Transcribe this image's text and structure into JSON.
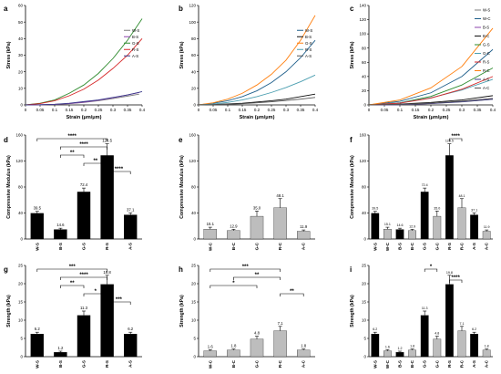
{
  "chart_data": [
    {
      "panel": "a",
      "type": "line",
      "xlabel": "Strain (μm/μm)",
      "ylabel": "Stress (kPa)",
      "xlim": [
        0,
        0.4
      ],
      "ylim": [
        0,
        60
      ],
      "xticks": [
        "0",
        "0.05",
        "0.1",
        "0.15",
        "0.2",
        "0.25",
        "0.3",
        "0.35",
        "0.4"
      ],
      "yticks": [
        "0",
        "10",
        "20",
        "30",
        "40",
        "50",
        "60"
      ],
      "legend_position": "right",
      "series": [
        {
          "name": "W-S",
          "color": "#7f7f7f",
          "x": [
            0,
            0.05,
            0.1,
            0.15,
            0.2,
            0.25,
            0.3,
            0.35,
            0.39
          ],
          "y": [
            0,
            0.1,
            0.3,
            0.7,
            1.5,
            2.5,
            3.8,
            5.3,
            6.5
          ]
        },
        {
          "name": "B-S",
          "color": "#8e44ad",
          "x": [
            0,
            0.05,
            0.1,
            0.15,
            0.2,
            0.25,
            0.3,
            0.35,
            0.39
          ],
          "y": [
            0,
            0.1,
            0.3,
            0.8,
            1.6,
            2.8,
            4.3,
            6.0,
            7.5
          ]
        },
        {
          "name": "G-S",
          "color": "#2e8b2e",
          "x": [
            0,
            0.05,
            0.1,
            0.15,
            0.2,
            0.25,
            0.3,
            0.35,
            0.4
          ],
          "y": [
            0,
            1,
            3,
            7,
            12,
            19,
            28,
            39,
            52
          ]
        },
        {
          "name": "R-S",
          "color": "#d62728",
          "x": [
            0,
            0.05,
            0.1,
            0.15,
            0.2,
            0.25,
            0.3,
            0.35,
            0.4
          ],
          "y": [
            0,
            0.8,
            2.5,
            5.5,
            9.5,
            15,
            22,
            30,
            40
          ]
        },
        {
          "name": "A-S",
          "color": "#3a3a8a",
          "x": [
            0,
            0.05,
            0.1,
            0.15,
            0.2,
            0.25,
            0.3,
            0.35,
            0.4
          ],
          "y": [
            0,
            0.1,
            0.4,
            1,
            2,
            3,
            4.5,
            6,
            8
          ]
        }
      ]
    },
    {
      "panel": "b",
      "type": "line",
      "xlabel": "Strain (μm/μm)",
      "ylabel": "Stress (kPa)",
      "xlim": [
        0,
        0.4
      ],
      "ylim": [
        0,
        120
      ],
      "xticks": [
        "0",
        "0.05",
        "0.1",
        "0.15",
        "0.2",
        "0.25",
        "0.3",
        "0.35",
        "0.4"
      ],
      "yticks": [
        "0",
        "20",
        "40",
        "60",
        "80",
        "100",
        "120"
      ],
      "legend_position": "right",
      "series": [
        {
          "name": "W-S",
          "color": "#1f5f8b",
          "x": [
            0,
            0.05,
            0.1,
            0.15,
            0.2,
            0.25,
            0.3,
            0.35,
            0.4
          ],
          "y": [
            0,
            2,
            5,
            10,
            17,
            27,
            40,
            57,
            78
          ]
        },
        {
          "name": "B-S",
          "color": "#111111",
          "x": [
            0,
            0.05,
            0.1,
            0.15,
            0.2,
            0.25,
            0.3,
            0.35,
            0.4
          ],
          "y": [
            0,
            0.5,
            1.2,
            2,
            3.5,
            5,
            7,
            10,
            13
          ]
        },
        {
          "name": "G-S",
          "color": "#ff7f0e",
          "x": [
            0,
            0.05,
            0.1,
            0.15,
            0.2,
            0.25,
            0.3,
            0.35,
            0.4
          ],
          "y": [
            0,
            2.5,
            7,
            14,
            24,
            37,
            54,
            78,
            108
          ]
        },
        {
          "name": "R-S",
          "color": "#4a9eb0",
          "x": [
            0,
            0.05,
            0.1,
            0.15,
            0.2,
            0.25,
            0.3,
            0.35,
            0.4
          ],
          "y": [
            0,
            1,
            3,
            6,
            10,
            15,
            21,
            28,
            36
          ]
        },
        {
          "name": "A-S",
          "color": "#555555",
          "x": [
            0,
            0.05,
            0.1,
            0.15,
            0.2,
            0.25,
            0.3,
            0.35,
            0.4
          ],
          "y": [
            0,
            0.3,
            0.8,
            1.5,
            2.5,
            3.8,
            5.3,
            7,
            9
          ]
        }
      ]
    },
    {
      "panel": "c",
      "type": "line",
      "xlabel": "Strain (μm/μm)",
      "ylabel": "Stress (kPa)",
      "xlim": [
        0,
        0.4
      ],
      "ylim": [
        0,
        140
      ],
      "xticks": [
        "0",
        "0.05",
        "0.1",
        "0.15",
        "0.2",
        "0.25",
        "0.3",
        "0.35",
        "0.4"
      ],
      "yticks": [
        "0",
        "20",
        "40",
        "60",
        "80",
        "100",
        "120",
        "140"
      ],
      "legend_position": "top-right",
      "series": [
        {
          "name": "W-S",
          "color": "#7f7f7f",
          "x": [
            0,
            0.1,
            0.2,
            0.3,
            0.4
          ],
          "y": [
            0,
            0.4,
            1.8,
            4.2,
            8
          ]
        },
        {
          "name": "W-C",
          "color": "#1f5f8b",
          "x": [
            0,
            0.1,
            0.2,
            0.3,
            0.4
          ],
          "y": [
            0,
            5,
            17,
            40,
            78
          ]
        },
        {
          "name": "B-S",
          "color": "#8e44ad",
          "x": [
            0,
            0.1,
            0.2,
            0.3,
            0.4
          ],
          "y": [
            0,
            0.4,
            2,
            5,
            9
          ]
        },
        {
          "name": "B-C",
          "color": "#111111",
          "x": [
            0,
            0.1,
            0.2,
            0.3,
            0.4
          ],
          "y": [
            0,
            1.2,
            3.5,
            7,
            13
          ]
        },
        {
          "name": "G-S",
          "color": "#2e8b2e",
          "x": [
            0,
            0.1,
            0.2,
            0.3,
            0.4
          ],
          "y": [
            0,
            3,
            12,
            28,
            52
          ]
        },
        {
          "name": "G-C",
          "color": "#4a9eb0",
          "x": [
            0,
            0.1,
            0.2,
            0.3,
            0.4
          ],
          "y": [
            0,
            3,
            10,
            21,
            36
          ]
        },
        {
          "name": "R-S",
          "color": "#d62728",
          "x": [
            0,
            0.1,
            0.2,
            0.3,
            0.4
          ],
          "y": [
            0,
            2.5,
            9.5,
            22,
            40
          ]
        },
        {
          "name": "R-C",
          "color": "#ff7f0e",
          "x": [
            0,
            0.1,
            0.2,
            0.3,
            0.4
          ],
          "y": [
            0,
            7,
            24,
            54,
            108
          ]
        },
        {
          "name": "A-S",
          "color": "#3a3a8a",
          "x": [
            0,
            0.1,
            0.2,
            0.3,
            0.4
          ],
          "y": [
            0,
            0.4,
            2,
            4.5,
            8
          ]
        },
        {
          "name": "A-C",
          "color": "#555555",
          "x": [
            0,
            0.1,
            0.2,
            0.3,
            0.4
          ],
          "y": [
            0,
            0.8,
            2.5,
            5.3,
            9
          ]
        }
      ]
    },
    {
      "panel": "d",
      "type": "bar",
      "ylabel": "Compressive Modulus (kPa)",
      "ylim": [
        0,
        160
      ],
      "categories": [
        "W-S",
        "B-S",
        "G-S",
        "R-S",
        "A-S"
      ],
      "values": [
        39.5,
        14.6,
        72.4,
        128.5,
        37.1
      ],
      "errors": [
        3,
        2,
        6,
        18,
        3
      ],
      "labels": [
        "39.5",
        "14.6",
        "72.4",
        "128.5",
        "37.1"
      ],
      "colors": [
        "#000000",
        "#000000",
        "#000000",
        "#000000",
        "#000000"
      ],
      "significance": [
        {
          "from": 0,
          "to": 3,
          "label": "****"
        },
        {
          "from": 1,
          "to": 3,
          "label": "****"
        },
        {
          "from": 1,
          "to": 2,
          "label": "**"
        },
        {
          "from": 2,
          "to": 3,
          "label": "**"
        },
        {
          "from": 3,
          "to": 4,
          "label": "****"
        }
      ]
    },
    {
      "panel": "e",
      "type": "bar",
      "ylabel": "Compressive Modulus (kPa)",
      "ylim": [
        0,
        160
      ],
      "categories": [
        "W-C",
        "B-C",
        "G-C",
        "R-C",
        "A-C"
      ],
      "values": [
        15.1,
        12.9,
        35.0,
        48.1,
        11.9
      ],
      "errors": [
        3,
        2,
        8,
        14,
        2
      ],
      "labels": [
        "15.1",
        "12.9",
        "35.0",
        "48.1",
        "11.9"
      ],
      "colors": [
        "#bdbdbd",
        "#bdbdbd",
        "#bdbdbd",
        "#bdbdbd",
        "#bdbdbd"
      ],
      "significance": []
    },
    {
      "panel": "f",
      "type": "bar",
      "ylabel": "Compressive Modulus (kPa)",
      "ylim": [
        0,
        160
      ],
      "categories": [
        "W-S",
        "W-C",
        "B-S",
        "B-C",
        "G-S",
        "G-C",
        "R-S",
        "R-C",
        "A-S",
        "A-C"
      ],
      "values": [
        39.5,
        15.1,
        14.6,
        12.9,
        72.4,
        35.0,
        128.5,
        48.1,
        37.1,
        11.9
      ],
      "errors": [
        3,
        3,
        2,
        2,
        6,
        8,
        18,
        14,
        3,
        2
      ],
      "labels": [
        "39.5",
        "15.1",
        "14.6",
        "12.9",
        "72.4",
        "35.0",
        "128.5",
        "48.1",
        "37.1",
        "11.9"
      ],
      "colors": [
        "#000000",
        "#bdbdbd",
        "#000000",
        "#bdbdbd",
        "#000000",
        "#bdbdbd",
        "#000000",
        "#bdbdbd",
        "#000000",
        "#bdbdbd"
      ],
      "significance": [
        {
          "from": 6,
          "to": 7,
          "label": "****"
        }
      ]
    },
    {
      "panel": "g",
      "type": "bar",
      "ylabel": "Strength (kPa)",
      "ylim": [
        0,
        25
      ],
      "categories": [
        "W-S",
        "B-S",
        "G-S",
        "R-S",
        "A-S"
      ],
      "values": [
        6.2,
        1.2,
        11.3,
        19.8,
        6.2
      ],
      "errors": [
        0.5,
        0.3,
        1.2,
        2.5,
        0.5
      ],
      "labels": [
        "6.2",
        "1.2",
        "11.3",
        "19.8",
        "6.2"
      ],
      "colors": [
        "#000000",
        "#000000",
        "#000000",
        "#000000",
        "#000000"
      ],
      "significance": [
        {
          "from": 0,
          "to": 3,
          "label": "***"
        },
        {
          "from": 1,
          "to": 3,
          "label": "****"
        },
        {
          "from": 1,
          "to": 2,
          "label": "**"
        },
        {
          "from": 2,
          "to": 3,
          "label": "*"
        },
        {
          "from": 3,
          "to": 4,
          "label": "***"
        }
      ]
    },
    {
      "panel": "h",
      "type": "bar",
      "ylabel": "Strength (kPa)",
      "ylim": [
        0,
        25
      ],
      "categories": [
        "W-C",
        "B-C",
        "G-C",
        "R-C",
        "A-C"
      ],
      "values": [
        1.6,
        1.8,
        4.8,
        7.1,
        1.8
      ],
      "errors": [
        0.3,
        0.3,
        0.8,
        1.2,
        0.3
      ],
      "labels": [
        "1.6",
        "1.8",
        "4.8",
        "7.1",
        "1.8"
      ],
      "colors": [
        "#bdbdbd",
        "#bdbdbd",
        "#bdbdbd",
        "#bdbdbd",
        "#bdbdbd"
      ],
      "significance": [
        {
          "from": 0,
          "to": 3,
          "label": "***"
        },
        {
          "from": 1,
          "to": 3,
          "label": "**"
        },
        {
          "from": 0,
          "to": 2,
          "label": "*"
        },
        {
          "from": 3,
          "to": 4,
          "label": "**"
        }
      ]
    },
    {
      "panel": "i",
      "type": "bar",
      "ylabel": "Strength (kPa)",
      "ylim": [
        0,
        25
      ],
      "categories": [
        "W-S",
        "W-C",
        "B-S",
        "B-C",
        "G-S",
        "G-C",
        "R-S",
        "R-C",
        "A-S",
        "A-C"
      ],
      "values": [
        6.2,
        1.6,
        1.2,
        1.8,
        11.3,
        4.8,
        19.8,
        7.1,
        6.2,
        1.8
      ],
      "errors": [
        0.5,
        0.3,
        0.3,
        0.3,
        1.2,
        0.8,
        2.5,
        1.2,
        0.5,
        0.3
      ],
      "labels": [
        "6.2",
        "1.6",
        "1.2",
        "1.8",
        "11.3",
        "4.8",
        "19.8",
        "7.1",
        "6.2",
        "1.8"
      ],
      "colors": [
        "#000000",
        "#bdbdbd",
        "#000000",
        "#bdbdbd",
        "#000000",
        "#bdbdbd",
        "#000000",
        "#bdbdbd",
        "#000000",
        "#bdbdbd"
      ],
      "significance": [
        {
          "from": 4,
          "to": 5,
          "label": "*"
        },
        {
          "from": 6,
          "to": 7,
          "label": "****"
        }
      ]
    }
  ]
}
